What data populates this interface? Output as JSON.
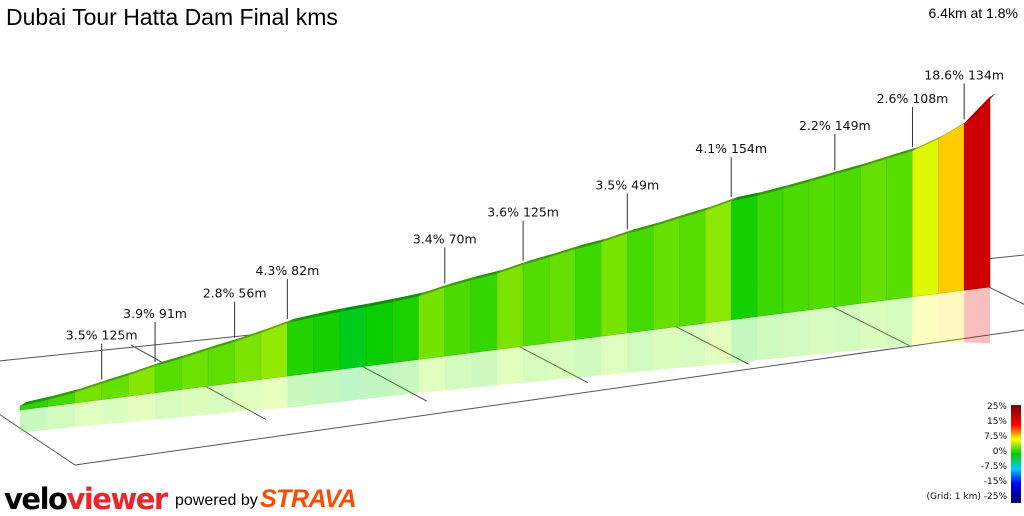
{
  "title": "Dubai Tour Hatta Dam Final kms",
  "summary": "6.4km at 1.8%",
  "branding": {
    "logo_velo": "velo",
    "logo_viewer": "viewer",
    "powered_by": "powered by",
    "strava": "STRAVA"
  },
  "grid_note": "(Grid: 1 km)",
  "colors": {
    "strava": "#fc4c02",
    "veloviewer_red": "#e8262c"
  },
  "chart_data": {
    "type": "area",
    "title": "Dubai Tour Hatta Dam Final kms",
    "subtitle": "6.4km at 1.8%",
    "distance_km": 6.4,
    "avg_gradient_pct": 1.8,
    "grid_km": 1,
    "annotations": [
      {
        "label": "3.5% 125m",
        "gradient_pct": 3.5,
        "length_m": 125
      },
      {
        "label": "3.9% 91m",
        "gradient_pct": 3.9,
        "length_m": 91
      },
      {
        "label": "2.8% 56m",
        "gradient_pct": 2.8,
        "length_m": 56
      },
      {
        "label": "4.3% 82m",
        "gradient_pct": 4.3,
        "length_m": 82
      },
      {
        "label": "3.4% 70m",
        "gradient_pct": 3.4,
        "length_m": 70
      },
      {
        "label": "3.6% 125m",
        "gradient_pct": 3.6,
        "length_m": 125
      },
      {
        "label": "3.5% 49m",
        "gradient_pct": 3.5,
        "length_m": 49
      },
      {
        "label": "4.1% 154m",
        "gradient_pct": 4.1,
        "length_m": 154
      },
      {
        "label": "2.2% 149m",
        "gradient_pct": 2.2,
        "length_m": 149
      },
      {
        "label": "2.6% 108m",
        "gradient_pct": 2.6,
        "length_m": 108
      },
      {
        "label": "18.6% 134m",
        "gradient_pct": 18.6,
        "length_m": 134
      }
    ],
    "gradient_legend": {
      "labels": [
        "25%",
        "15%",
        "7.5%",
        "0%",
        "-7.5%",
        "-15%",
        "-25%"
      ],
      "stops": [
        {
          "value": 25,
          "color": "#7a0000"
        },
        {
          "value": 15,
          "color": "#ff0000"
        },
        {
          "value": 7.5,
          "color": "#ffff00"
        },
        {
          "value": 0,
          "color": "#00cc00"
        },
        {
          "value": -7.5,
          "color": "#00ccff"
        },
        {
          "value": -15,
          "color": "#0000ff"
        },
        {
          "value": -25,
          "color": "#000066"
        }
      ]
    }
  }
}
